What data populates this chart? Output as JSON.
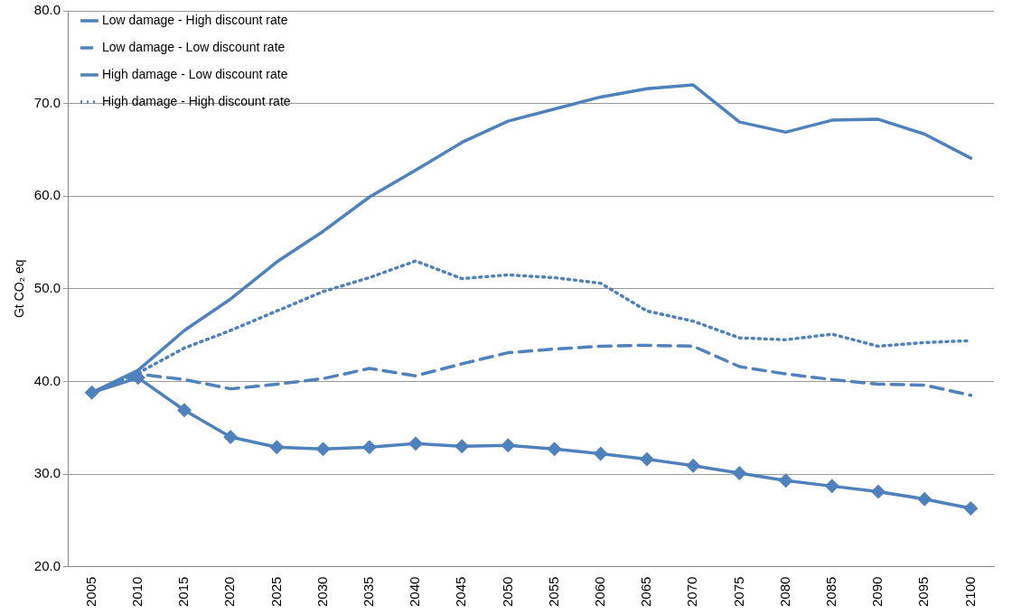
{
  "chart_data": {
    "type": "line",
    "ylabel": "Gt CO₂ eq",
    "categories": [
      "2005",
      "2010",
      "2015",
      "2020",
      "2025",
      "2030",
      "2035",
      "2040",
      "2045",
      "2050",
      "2055",
      "2060",
      "2065",
      "2070",
      "2075",
      "2080",
      "2085",
      "2090",
      "2095",
      "2100"
    ],
    "series": [
      {
        "name": "Low damage - High discount rate",
        "color": "#4f81bd",
        "line_style": "solid",
        "marker": "none",
        "values": [
          38.8,
          41.2,
          45.5,
          48.9,
          52.9,
          56.2,
          59.9,
          62.8,
          65.8,
          68.1,
          69.4,
          70.7,
          71.6,
          72.0,
          68.0,
          66.9,
          68.2,
          68.3,
          66.7,
          64.1
        ]
      },
      {
        "name": "Low damage - Low discount rate",
        "color": "#4f81bd",
        "line_style": "dashed",
        "marker": "none",
        "values": [
          38.8,
          40.8,
          40.2,
          39.2,
          39.7,
          40.3,
          41.4,
          40.6,
          41.9,
          43.1,
          43.5,
          43.8,
          43.9,
          43.8,
          41.6,
          40.8,
          40.2,
          39.7,
          39.6,
          38.5
        ]
      },
      {
        "name": "High damage - Low discount rate",
        "color": "#4f81bd",
        "line_style": "solid",
        "marker": "diamond",
        "values": [
          38.8,
          40.4,
          36.9,
          34.0,
          32.9,
          32.7,
          32.9,
          33.3,
          33.0,
          33.1,
          32.7,
          32.2,
          31.6,
          30.9,
          30.1,
          29.3,
          28.7,
          28.1,
          27.3,
          26.3
        ]
      },
      {
        "name": "High damage - High discount rate",
        "color": "#4f81bd",
        "line_style": "dotted",
        "marker": "none",
        "values": [
          38.8,
          40.9,
          43.6,
          45.5,
          47.6,
          49.7,
          51.2,
          53.0,
          51.1,
          51.5,
          51.2,
          50.6,
          47.6,
          46.5,
          44.7,
          44.5,
          45.1,
          43.8,
          44.2,
          44.4
        ]
      }
    ],
    "ylim": [
      20,
      80
    ],
    "yticks": [
      {
        "value": 20,
        "label": "20.0"
      },
      {
        "value": 30,
        "label": "30.0"
      },
      {
        "value": 40,
        "label": "40.0"
      },
      {
        "value": 50,
        "label": "50.0"
      },
      {
        "value": 60,
        "label": "60.0"
      },
      {
        "value": 70,
        "label": "70.0"
      },
      {
        "value": 80,
        "label": "80.0"
      }
    ],
    "grid": "y",
    "legend": "top left"
  }
}
